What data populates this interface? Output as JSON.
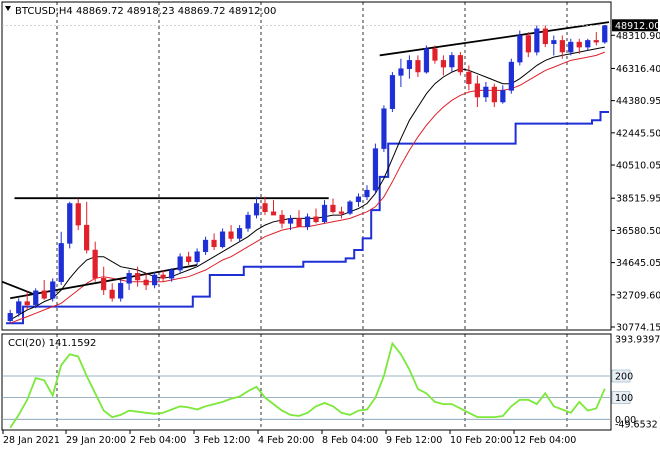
{
  "header": {
    "symbol": "BTCUSD,H4",
    "ohlc": "48869.72 48918.23 48869.72 48912.00",
    "title_text": "BTCUSD,H4  48869.72 48918.23 48869.72 48912.00"
  },
  "indicator": {
    "title": "CCI(20) 141.1592",
    "levels": [
      "393.9397",
      "200",
      "100",
      "0.00",
      "-49.6532"
    ]
  },
  "colors": {
    "bull": "#1f2fd6",
    "bear": "#e0202a",
    "ma_black": "#000000",
    "ma_red": "#e0202a",
    "channel_blue": "#1f2fd6",
    "cci_line": "#7be83a",
    "price_tag_bg": "#000000",
    "level_line": "#7d9bb0"
  },
  "chart_data": [
    {
      "type": "candlestick",
      "title": "BTCUSD,H4 48869.72 48918.23 48869.72 48912.00",
      "x_tick_labels": [
        "28 Jan 2021",
        "29 Jan 20:00",
        "2 Feb 04:00",
        "3 Feb 12:00",
        "4 Feb 20:00",
        "8 Feb 04:00",
        "9 Feb 12:00",
        "10 Feb 20:00",
        "12 Feb 04:00"
      ],
      "y_tick_labels": [
        "48310.90",
        "46316.40",
        "44380.95",
        "42445.50",
        "40510.05",
        "38515.95",
        "36580.50",
        "34645.05",
        "32709.60",
        "30774.15"
      ],
      "ylim": [
        30774.15,
        49650
      ],
      "current_price": "48912.00",
      "candles": [
        [
          31150,
          31800,
          31000,
          31600
        ],
        [
          31600,
          32500,
          31400,
          32300
        ],
        [
          32300,
          32900,
          31800,
          32100
        ],
        [
          32100,
          33100,
          31900,
          32950
        ],
        [
          32950,
          33600,
          32400,
          32500
        ],
        [
          32500,
          33700,
          32300,
          33500
        ],
        [
          33500,
          36500,
          33300,
          35800
        ],
        [
          35800,
          38300,
          35500,
          38200
        ],
        [
          38200,
          38500,
          36600,
          36900
        ],
        [
          36900,
          38300,
          35200,
          35400
        ],
        [
          35400,
          35900,
          33500,
          33700
        ],
        [
          33700,
          34400,
          32700,
          33000
        ],
        [
          33000,
          33400,
          32300,
          32500
        ],
        [
          32500,
          33600,
          32300,
          33400
        ],
        [
          33400,
          34200,
          33000,
          34000
        ],
        [
          34000,
          34400,
          33200,
          33600
        ],
        [
          33600,
          34000,
          33000,
          33300
        ],
        [
          33300,
          34100,
          33100,
          33900
        ],
        [
          33900,
          34200,
          33500,
          33700
        ],
        [
          33700,
          34300,
          33500,
          34200
        ],
        [
          34200,
          35200,
          34000,
          35000
        ],
        [
          35000,
          35300,
          34500,
          34700
        ],
        [
          34700,
          35500,
          34500,
          35300
        ],
        [
          35300,
          36200,
          35100,
          36000
        ],
        [
          36000,
          36400,
          35400,
          35600
        ],
        [
          35600,
          36700,
          35500,
          36500
        ],
        [
          36500,
          36900,
          35900,
          36100
        ],
        [
          36100,
          36900,
          35900,
          36700
        ],
        [
          36700,
          37700,
          36500,
          37500
        ],
        [
          37500,
          38600,
          37300,
          38200
        ],
        [
          38200,
          38600,
          37500,
          37700
        ],
        [
          37700,
          38400,
          37500,
          37500
        ],
        [
          37500,
          37800,
          36700,
          37000
        ],
        [
          37000,
          37500,
          36600,
          37300
        ],
        [
          37300,
          37800,
          36900,
          36800
        ],
        [
          36800,
          37600,
          36600,
          37400
        ],
        [
          37400,
          37900,
          37000,
          37100
        ],
        [
          37100,
          38400,
          37000,
          38100
        ],
        [
          38100,
          38500,
          37600,
          37700
        ],
        [
          37700,
          38000,
          37300,
          37600
        ],
        [
          37600,
          38400,
          37500,
          38300
        ],
        [
          38300,
          38800,
          38000,
          38600
        ],
        [
          38600,
          39300,
          38400,
          39000
        ],
        [
          39000,
          41800,
          38800,
          41500
        ],
        [
          41500,
          44100,
          41300,
          43900
        ],
        [
          43900,
          46100,
          43700,
          45900
        ],
        [
          45900,
          46900,
          45200,
          46300
        ],
        [
          46300,
          47100,
          45700,
          46800
        ],
        [
          46800,
          47100,
          45800,
          46100
        ],
        [
          46100,
          47700,
          46000,
          47500
        ],
        [
          47500,
          47700,
          46600,
          46800
        ],
        [
          46800,
          47100,
          45900,
          46400
        ],
        [
          46400,
          47300,
          46100,
          47100
        ],
        [
          47100,
          47300,
          45900,
          46100
        ],
        [
          46100,
          46500,
          45000,
          45400
        ],
        [
          45400,
          45900,
          44000,
          44600
        ],
        [
          44600,
          45500,
          44300,
          45200
        ],
        [
          45200,
          45400,
          44000,
          44300
        ],
        [
          44300,
          45300,
          44200,
          45000
        ],
        [
          45000,
          46900,
          44800,
          46700
        ],
        [
          46700,
          48600,
          46500,
          48300
        ],
        [
          48300,
          48500,
          47000,
          47300
        ],
        [
          47300,
          48900,
          47100,
          48700
        ],
        [
          48700,
          48900,
          47600,
          47800
        ],
        [
          47800,
          48300,
          47100,
          48000
        ],
        [
          48000,
          48300,
          46900,
          47300
        ],
        [
          47300,
          48100,
          47100,
          47900
        ],
        [
          47900,
          48100,
          47200,
          47600
        ],
        [
          47600,
          48100,
          47400,
          48000
        ],
        [
          48000,
          48500,
          47700,
          47900
        ],
        [
          47900,
          48920,
          47800,
          48912
        ]
      ],
      "ma_black": [
        31200,
        31500,
        31800,
        32000,
        32300,
        32500,
        33000,
        33700,
        34300,
        34800,
        35000,
        35000,
        34700,
        34400,
        34300,
        34200,
        34000,
        33800,
        33700,
        33800,
        34000,
        34200,
        34400,
        34700,
        35000,
        35300,
        35600,
        35900,
        36200,
        36600,
        36900,
        37100,
        37200,
        37300,
        37300,
        37300,
        37300,
        37400,
        37500,
        37500,
        37700,
        37900,
        38200,
        38800,
        39700,
        40900,
        42100,
        43200,
        44000,
        44800,
        45400,
        45800,
        46100,
        46300,
        46200,
        46000,
        45800,
        45600,
        45400,
        45400,
        45700,
        46100,
        46500,
        46800,
        47000,
        47100,
        47200,
        47300,
        47400,
        47500,
        47600
      ],
      "ma_red": [
        31000,
        31200,
        31400,
        31600,
        31800,
        32000,
        32200,
        32600,
        33000,
        33400,
        33700,
        33800,
        33700,
        33600,
        33500,
        33500,
        33500,
        33500,
        33500,
        33600,
        33700,
        33800,
        34000,
        34200,
        34500,
        34800,
        35000,
        35300,
        35600,
        35900,
        36200,
        36400,
        36600,
        36700,
        36800,
        36800,
        36900,
        37000,
        37100,
        37200,
        37300,
        37500,
        37700,
        38000,
        38600,
        39500,
        40500,
        41400,
        42200,
        42900,
        43500,
        44000,
        44400,
        44700,
        44900,
        45000,
        45000,
        45000,
        45000,
        45100,
        45300,
        45600,
        45900,
        46200,
        46400,
        46600,
        46800,
        46900,
        47000,
        47100,
        47300
      ],
      "channel_upper_line": [
        [
          0.5,
          38515.95
        ],
        [
          37.5,
          38515.95
        ]
      ],
      "channel_lower_line": [
        [
          0,
          32500
        ],
        [
          22,
          34500
        ]
      ],
      "upper_trend_line": [
        [
          43.5,
          47100
        ],
        [
          70.5,
          49100
        ]
      ],
      "blue_channel": [
        31000,
        31000,
        32000,
        32000,
        32000,
        32000,
        32000,
        32000,
        32000,
        32000,
        32000,
        32000,
        32000,
        32000,
        32000,
        32000,
        32000,
        32000,
        32000,
        32000,
        32000,
        32000,
        32600,
        32600,
        33900,
        33900,
        33900,
        33900,
        34400,
        34400,
        34400,
        34400,
        34400,
        34400,
        34400,
        34700,
        34700,
        34700,
        34700,
        34700,
        34900,
        35400,
        36100,
        37800,
        39800,
        41800,
        41800,
        41800,
        41800,
        41800,
        41800,
        41800,
        41800,
        41800,
        41800,
        41800,
        41800,
        41800,
        41800,
        41800,
        43000,
        43000,
        43000,
        43000,
        43000,
        43000,
        43000,
        43000,
        43000,
        43200,
        43700
      ]
    },
    {
      "type": "line",
      "title": "CCI(20) 141.1592",
      "y_tick_labels": [
        "393.9397",
        "200",
        "100",
        "0.00",
        "-49.6532"
      ],
      "ylim": [
        -49.6532,
        393.9397
      ],
      "levels": [
        200,
        100,
        0
      ],
      "series": [
        {
          "name": "CCI(20)",
          "values": [
            -40,
            20,
            90,
            190,
            180,
            110,
            250,
            300,
            290,
            200,
            120,
            40,
            10,
            20,
            40,
            35,
            30,
            25,
            30,
            45,
            60,
            55,
            45,
            60,
            70,
            80,
            95,
            105,
            130,
            150,
            100,
            70,
            40,
            20,
            15,
            30,
            60,
            75,
            60,
            30,
            20,
            40,
            45,
            100,
            200,
            350,
            300,
            230,
            140,
            120,
            80,
            70,
            70,
            50,
            30,
            10,
            10,
            10,
            15,
            60,
            90,
            90,
            70,
            120,
            60,
            45,
            30,
            80,
            40,
            50,
            141.1592
          ]
        }
      ]
    }
  ]
}
